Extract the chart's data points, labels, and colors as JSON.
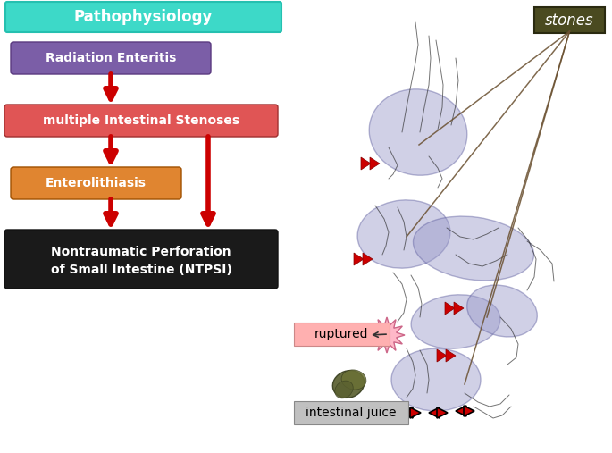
{
  "bg_color": "#ffffff",
  "pathophysiology_text": "Pathophysiology",
  "pathophysiology_bg": "#3dd9c8",
  "pathophysiology_text_color": "#ffffff",
  "box1_text": "Radiation Enteritis",
  "box1_bg": "#7b5ea7",
  "box2_text": "multiple Intestinal Stenoses",
  "box2_bg": "#e05555",
  "box3_text": "Enterolithiasis",
  "box3_bg": "#e08530",
  "box4_text": "Nontraumatic Perforation\nof Small Intestine (NTPSI)",
  "box4_bg": "#1a1a1a",
  "box_text_color": "#ffffff",
  "arrow_color": "#cc0000",
  "stones_label": "stones",
  "stones_bg": "#4a4a20",
  "stones_text_color": "#ffffff",
  "ruptured_label": "ruptured",
  "ruptured_bg": "#ffb0b0",
  "intestinal_juice_label": "intestinal juice",
  "intestinal_juice_bg": "#c0c0c0",
  "ellipse_color": "#9898c8",
  "ellipse_alpha": 0.45,
  "line_color": "#6a5030",
  "arrow_lw": 4
}
